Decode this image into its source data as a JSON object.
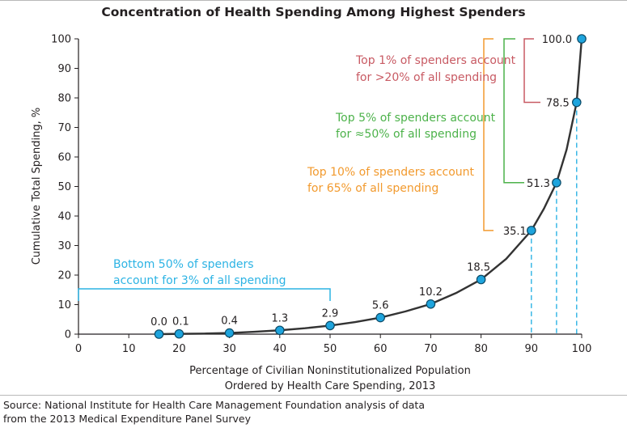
{
  "colors": {
    "axis": "#231f20",
    "curve": "#333333",
    "point_fill": "#1ea4dd",
    "point_stroke": "#0c4a66",
    "blue": "#2cb3e4",
    "orange": "#f29a2e",
    "green": "#4cb24a",
    "red": "#c85a63",
    "title_rule": "#b9b9b9"
  },
  "chart_data": {
    "type": "line",
    "title": "Concentration of Health Spending Among Highest Spenders",
    "xlabel_lines": [
      "Percentage of Civilian Noninstitutionalized Population",
      "Ordered by Health Care Spending, 2013"
    ],
    "ylabel": "Cumulative Total Spending, %",
    "xlim": [
      0,
      100
    ],
    "ylim": [
      0,
      100
    ],
    "x_ticks": [
      0,
      10,
      20,
      30,
      40,
      50,
      60,
      70,
      80,
      90,
      100
    ],
    "y_ticks": [
      0,
      10,
      20,
      30,
      40,
      50,
      60,
      70,
      80,
      90,
      100
    ],
    "grid": false,
    "points": [
      {
        "x": 16,
        "y": 0.0,
        "label": "0.0"
      },
      {
        "x": 20,
        "y": 0.1,
        "label": "0.1"
      },
      {
        "x": 30,
        "y": 0.4,
        "label": "0.4"
      },
      {
        "x": 40,
        "y": 1.3,
        "label": "1.3"
      },
      {
        "x": 50,
        "y": 2.9,
        "label": "2.9"
      },
      {
        "x": 60,
        "y": 5.6,
        "label": "5.6"
      },
      {
        "x": 70,
        "y": 10.2,
        "label": "10.2"
      },
      {
        "x": 80,
        "y": 18.5,
        "label": "18.5"
      },
      {
        "x": 90,
        "y": 35.1,
        "label": "35.1"
      },
      {
        "x": 95,
        "y": 51.3,
        "label": "51.3"
      },
      {
        "x": 99,
        "y": 78.5,
        "label": "78.5"
      },
      {
        "x": 100,
        "y": 100.0,
        "label": "100.0"
      }
    ],
    "curve": [
      [
        16,
        0.0
      ],
      [
        20,
        0.1
      ],
      [
        25,
        0.2
      ],
      [
        30,
        0.4
      ],
      [
        35,
        0.8
      ],
      [
        40,
        1.3
      ],
      [
        45,
        2.0
      ],
      [
        50,
        2.9
      ],
      [
        55,
        4.1
      ],
      [
        60,
        5.6
      ],
      [
        65,
        7.7
      ],
      [
        70,
        10.2
      ],
      [
        75,
        13.9
      ],
      [
        80,
        18.5
      ],
      [
        85,
        25.5
      ],
      [
        90,
        35.1
      ],
      [
        92.5,
        42.5
      ],
      [
        95,
        51.3
      ],
      [
        97,
        62.5
      ],
      [
        99,
        78.5
      ],
      [
        100,
        100.0
      ]
    ],
    "annotations": [
      {
        "name": "bottom-50",
        "lines": [
          "Bottom 50% of spenders",
          "account for 3% of all spending"
        ],
        "color": "blue"
      },
      {
        "name": "top-10",
        "lines": [
          "Top 10% of spenders account",
          "for 65% of all spending"
        ],
        "color": "orange"
      },
      {
        "name": "top-5",
        "lines": [
          "Top 5% of spenders account",
          "for ≈50% of all spending"
        ],
        "color": "green"
      },
      {
        "name": "top-1",
        "lines": [
          "Top 1% of spenders account",
          "for >20% of all spending"
        ],
        "color": "red"
      }
    ],
    "dashed_drops": [
      90,
      95,
      99
    ]
  },
  "source_lines": [
    "Source: National Institute for Health Care Management Foundation analysis of data",
    "from the 2013 Medical Expenditure Panel Survey"
  ]
}
